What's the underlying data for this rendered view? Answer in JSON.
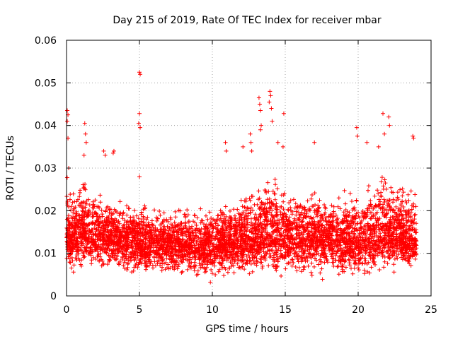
{
  "chart_data": {
    "type": "scatter",
    "title": "Day 215 of 2019, Rate Of TEC Index for receiver mbar",
    "xlabel": "GPS time / hours",
    "ylabel": "ROTI / TECUs",
    "xlim": [
      0,
      25
    ],
    "ylim": [
      0,
      0.06
    ],
    "xticks": [
      0,
      5,
      10,
      15,
      20,
      25
    ],
    "xtick_labels": [
      "0",
      "5",
      "10",
      "15",
      "20",
      "25"
    ],
    "yticks": [
      0,
      0.01,
      0.02,
      0.03,
      0.04,
      0.05,
      0.06
    ],
    "ytick_labels": [
      "0",
      "0.01",
      "0.02",
      "0.03",
      "0.04",
      "0.05",
      "0.06"
    ],
    "grid": true,
    "marker": "+",
    "color": "#ff0000",
    "series": [
      {
        "name": "ROTI",
        "envelope": {
          "x": [
            0,
            0.5,
            1,
            1.5,
            2,
            2.5,
            3,
            3.5,
            4,
            4.5,
            5,
            5.5,
            6,
            7,
            8,
            9,
            10,
            11,
            12,
            12.5,
            13,
            13.5,
            14,
            14.5,
            15,
            16,
            17,
            18,
            19,
            19.5,
            20,
            20.5,
            21,
            21.5,
            22,
            22.5,
            23,
            23.5,
            24
          ],
          "median": [
            0.013,
            0.014,
            0.015,
            0.015,
            0.014,
            0.014,
            0.014,
            0.013,
            0.013,
            0.013,
            0.012,
            0.012,
            0.012,
            0.012,
            0.012,
            0.012,
            0.012,
            0.013,
            0.013,
            0.013,
            0.014,
            0.014,
            0.015,
            0.015,
            0.014,
            0.014,
            0.014,
            0.014,
            0.013,
            0.013,
            0.012,
            0.013,
            0.014,
            0.015,
            0.015,
            0.015,
            0.014,
            0.014,
            0.013
          ],
          "upper": [
            0.03,
            0.026,
            0.03,
            0.028,
            0.025,
            0.025,
            0.025,
            0.024,
            0.023,
            0.022,
            0.024,
            0.024,
            0.021,
            0.021,
            0.022,
            0.021,
            0.021,
            0.023,
            0.024,
            0.026,
            0.027,
            0.028,
            0.03,
            0.029,
            0.028,
            0.026,
            0.026,
            0.025,
            0.026,
            0.027,
            0.025,
            0.026,
            0.028,
            0.03,
            0.029,
            0.029,
            0.027,
            0.027,
            0.026
          ],
          "lower": [
            0.006,
            0.005,
            0.005,
            0.005,
            0.005,
            0.005,
            0.005,
            0.005,
            0.004,
            0.004,
            0.004,
            0.005,
            0.005,
            0.004,
            0.004,
            0.003,
            0.003,
            0.004,
            0.004,
            0.004,
            0.004,
            0.004,
            0.004,
            0.004,
            0.004,
            0.004,
            0.004,
            0.004,
            0.004,
            0.004,
            0.003,
            0.004,
            0.004,
            0.005,
            0.005,
            0.005,
            0.005,
            0.005,
            0.005
          ]
        },
        "outliers": [
          [
            0.05,
            0.0435
          ],
          [
            0.1,
            0.0425
          ],
          [
            0.05,
            0.041
          ],
          [
            0.1,
            0.037
          ],
          [
            0.15,
            0.03
          ],
          [
            1.25,
            0.0405
          ],
          [
            1.3,
            0.038
          ],
          [
            1.35,
            0.036
          ],
          [
            1.2,
            0.033
          ],
          [
            2.55,
            0.034
          ],
          [
            2.65,
            0.033
          ],
          [
            3.2,
            0.0335
          ],
          [
            3.25,
            0.034
          ],
          [
            5.0,
            0.0525
          ],
          [
            5.05,
            0.052
          ],
          [
            5.0,
            0.0428
          ],
          [
            4.95,
            0.0405
          ],
          [
            5.05,
            0.0395
          ],
          [
            5.0,
            0.028
          ],
          [
            10.9,
            0.036
          ],
          [
            10.95,
            0.034
          ],
          [
            12.1,
            0.035
          ],
          [
            12.6,
            0.038
          ],
          [
            12.65,
            0.036
          ],
          [
            12.7,
            0.034
          ],
          [
            13.2,
            0.0465
          ],
          [
            13.25,
            0.045
          ],
          [
            13.3,
            0.0435
          ],
          [
            13.95,
            0.048
          ],
          [
            14.0,
            0.047
          ],
          [
            13.9,
            0.0455
          ],
          [
            14.05,
            0.044
          ],
          [
            14.1,
            0.041
          ],
          [
            13.3,
            0.039
          ],
          [
            13.35,
            0.04
          ],
          [
            14.5,
            0.036
          ],
          [
            14.9,
            0.0428
          ],
          [
            14.85,
            0.035
          ],
          [
            17.0,
            0.036
          ],
          [
            19.9,
            0.0395
          ],
          [
            19.95,
            0.0375
          ],
          [
            21.7,
            0.0428
          ],
          [
            22.1,
            0.042
          ],
          [
            22.15,
            0.04
          ],
          [
            21.8,
            0.038
          ],
          [
            21.4,
            0.035
          ],
          [
            20.6,
            0.036
          ],
          [
            23.75,
            0.0375
          ],
          [
            23.8,
            0.037
          ]
        ]
      }
    ]
  }
}
